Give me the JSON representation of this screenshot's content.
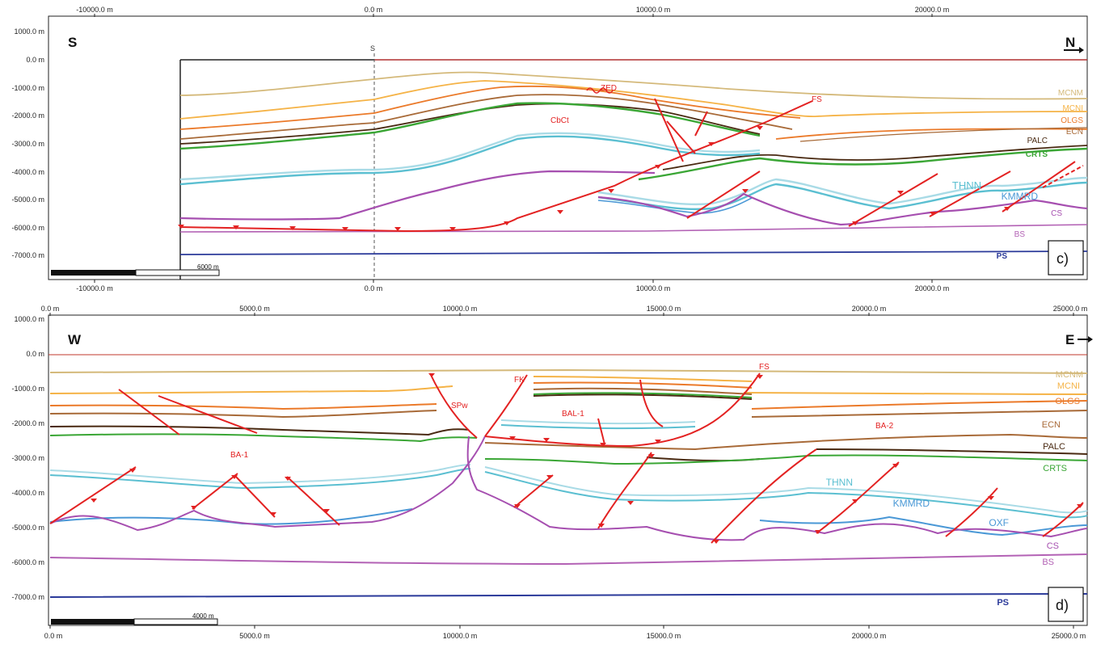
{
  "colors": {
    "frame": "#222222",
    "fault": "#e32222",
    "topline": "#c0392b",
    "MCNM": "#d4b97a",
    "MCNI": "#f5b347",
    "OLGS": "#eb7a2a",
    "ECN": "#a86a38",
    "PALC": "#4a2a12",
    "CRTS": "#3aa635",
    "THNN_light": "#a9dbe6",
    "THNN": "#5bbfd1",
    "KMMRD": "#4a98d6",
    "OXF": "#4a98d6",
    "CS": "#a64fb0",
    "BS": "#b362b5",
    "PS": "#2b3a9a"
  },
  "panel_c": {
    "corner_label": "c)",
    "left_direction": "S",
    "right_direction": "N",
    "section_marker": "S",
    "scale_bar_label": "6000 m",
    "x_ticks_top": [
      "-10000.0 m",
      "0.0 m",
      "10000.0 m",
      "20000.0 m"
    ],
    "x_ticks_bottom": [
      "-10000.0 m",
      "0.0 m",
      "10000.0 m",
      "20000.0 m"
    ],
    "y_ticks": [
      "1000.0 m",
      "0.0 m",
      "-1000.0 m",
      "-2000.0 m",
      "-3000.0 m",
      "-4000.0 m",
      "-5000.0 m",
      "-6000.0 m",
      "-7000.0 m"
    ],
    "horizon_labels": [
      "MCNM",
      "MCNI",
      "OLGS",
      "ECN",
      "PALC",
      "CRTS",
      "THNN",
      "KMMRD",
      "CS",
      "BS",
      "PS"
    ],
    "structure_labels": [
      "ZED",
      "FS",
      "CbCt"
    ]
  },
  "panel_d": {
    "corner_label": "d)",
    "left_direction": "W",
    "right_direction": "E",
    "scale_bar_label": "4000 m",
    "x_ticks_top": [
      "0.0 m",
      "5000.0 m",
      "10000.0 m",
      "15000.0 m",
      "20000.0 m",
      "25000.0 m"
    ],
    "x_ticks_bottom": [
      "0.0 m",
      "5000.0 m",
      "10000.0 m",
      "15000.0 m",
      "20000.0 m",
      "25000.0 m"
    ],
    "y_ticks": [
      "1000.0 m",
      "0.0 m",
      "-1000.0 m",
      "-2000.0 m",
      "-3000.0 m",
      "-4000.0 m",
      "-5000.0 m",
      "-6000.0 m",
      "-7000.0 m"
    ],
    "horizon_labels": [
      "MCNM",
      "MCNI",
      "OLGS",
      "ECN",
      "PALC",
      "CRTS",
      "THNN",
      "KMMRD",
      "OXF",
      "CS",
      "BS",
      "PS"
    ],
    "structure_labels": [
      "FS",
      "FK",
      "SPw",
      "BAL-1",
      "BA-1",
      "BA-2"
    ]
  }
}
